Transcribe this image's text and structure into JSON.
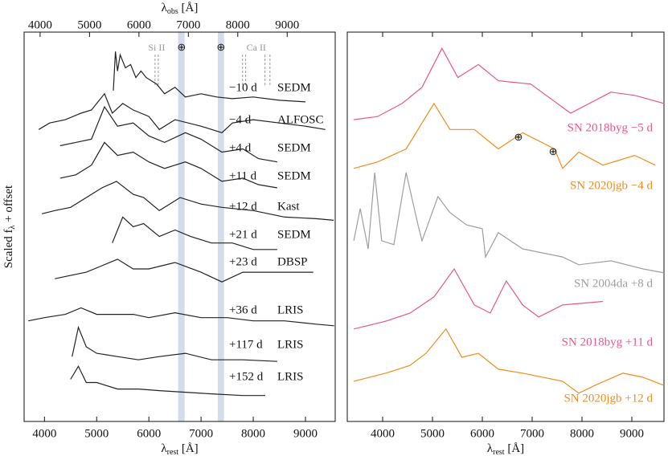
{
  "chart_data": [
    {
      "type": "line",
      "xlabel": {
        "symbol": "λ",
        "sub": "rest",
        "unit": " [Å]"
      },
      "x2label": {
        "symbol": "λ",
        "sub": "obs",
        "unit": " [Å]"
      },
      "ylabel": {
        "pre": "Scaled f",
        "sub": "λ",
        "post": " + offset"
      },
      "xlim": [
        3610,
        9570
      ],
      "xticks": [
        4000,
        5000,
        6000,
        7000,
        8000,
        9000
      ],
      "x2lim": [
        3676,
        9972
      ],
      "x2ticks": [
        4000,
        5000,
        6000,
        7000,
        8000,
        9000
      ],
      "ylim": [
        0,
        12
      ],
      "bands": [
        [
          6560,
          6685
        ],
        [
          7320,
          7440
        ]
      ],
      "band_color": "#c9d3e6",
      "telluric": [
        {
          "text": "⊕",
          "x": 6625
        },
        {
          "text": "⊕",
          "x": 7380
        }
      ],
      "lines": [
        {
          "text": "Si II",
          "x": [
            6118,
            6180
          ]
        },
        {
          "text": "Ca II",
          "x": [
            7795,
            7855,
            8225,
            8320
          ]
        }
      ],
      "series": [
        {
          "phase": "−10 d",
          "instrument": "SEDM",
          "color": "#222222",
          "x": [
            5320,
            5360,
            5400,
            5450,
            5550,
            5650,
            5750,
            5850,
            5950,
            6150,
            6300,
            6500,
            6700,
            7000,
            7300,
            7600,
            8000,
            8500,
            9000
          ],
          "values": [
            10.2,
            11.4,
            10.8,
            11.3,
            10.9,
            11.0,
            10.6,
            10.8,
            10.6,
            10.4,
            10.1,
            10.3,
            10.0,
            10.1,
            10.0,
            9.95,
            10.0,
            9.9,
            9.85
          ]
        },
        {
          "phase": "−4 d",
          "instrument": "ALFOSC",
          "color": "#222222",
          "x": [
            3890,
            4100,
            4400,
            4700,
            4900,
            5150,
            5300,
            5500,
            5700,
            6000,
            6200,
            6500,
            7000,
            7400,
            7600,
            8000,
            8500,
            9000,
            9380
          ],
          "values": [
            9.0,
            9.2,
            9.3,
            9.5,
            9.6,
            10.1,
            9.5,
            9.8,
            9.6,
            9.4,
            9.0,
            9.3,
            9.1,
            8.9,
            9.2,
            9.3,
            9.2,
            9.1,
            9.0
          ]
        },
        {
          "phase": "+4 d",
          "instrument": "SEDM",
          "color": "#222222",
          "x": [
            4300,
            4600,
            4900,
            5150,
            5400,
            5700,
            6000,
            6300,
            6700,
            7000,
            7400,
            7800,
            8100,
            8460
          ],
          "values": [
            8.5,
            8.6,
            8.7,
            9.7,
            9.1,
            9.2,
            8.8,
            8.6,
            8.9,
            8.7,
            8.3,
            8.4,
            8.1,
            8.0
          ]
        },
        {
          "phase": "+11 d",
          "instrument": "SEDM",
          "color": "#222222",
          "x": [
            4300,
            4600,
            4900,
            5150,
            5400,
            5700,
            6000,
            6300,
            6700,
            7000,
            7400,
            7800,
            8100,
            8460
          ],
          "values": [
            7.5,
            7.6,
            7.9,
            8.6,
            8.2,
            8.3,
            8.0,
            7.8,
            8.0,
            7.8,
            7.4,
            7.5,
            7.3,
            7.2
          ]
        },
        {
          "phase": "+12 d",
          "instrument": "Kast",
          "color": "#222222",
          "x": [
            3950,
            4200,
            4500,
            4800,
            5100,
            5380,
            5700,
            5900,
            6200,
            6600,
            7000,
            7400,
            8000,
            8600,
            9200,
            9540
          ],
          "values": [
            6.4,
            6.5,
            6.6,
            6.9,
            7.2,
            7.4,
            7.0,
            6.9,
            6.5,
            6.9,
            6.7,
            6.6,
            6.5,
            6.3,
            6.25,
            6.2
          ]
        },
        {
          "phase": "+21 d",
          "instrument": "SEDM",
          "color": "#222222",
          "x": [
            5300,
            5500,
            5700,
            5900,
            6200,
            6500,
            6800,
            7200,
            7600,
            8000,
            8460
          ],
          "values": [
            5.5,
            6.3,
            6.0,
            6.1,
            5.7,
            5.9,
            5.7,
            5.5,
            5.5,
            5.3,
            5.3
          ]
        },
        {
          "phase": "+23 d",
          "instrument": "DBSP",
          "color": "#222222",
          "x": [
            4200,
            4500,
            4800,
            5100,
            5400,
            5700,
            6000,
            6500,
            7000,
            7400,
            7800,
            8400,
            9150
          ],
          "values": [
            4.4,
            4.5,
            4.6,
            4.8,
            5.0,
            4.7,
            4.7,
            4.9,
            4.6,
            4.3,
            4.6,
            4.6,
            4.6
          ]
        },
        {
          "phase": "+36 d",
          "instrument": "LRIS",
          "color": "#222222",
          "x": [
            3690,
            4000,
            4400,
            4700,
            5000,
            5400,
            5700,
            6000,
            6500,
            7000,
            7500,
            8000,
            8600,
            9200,
            9550
          ],
          "values": [
            3.1,
            3.2,
            3.3,
            3.5,
            3.3,
            3.3,
            3.3,
            3.2,
            3.35,
            3.2,
            3.2,
            3.1,
            3.1,
            3.0,
            2.95
          ]
        },
        {
          "phase": "+117 d",
          "instrument": "LRIS",
          "color": "#222222",
          "x": [
            4530,
            4650,
            4800,
            5000,
            5400,
            5800,
            6200,
            6700,
            7200,
            7800,
            8460
          ],
          "values": [
            2.0,
            2.9,
            2.3,
            2.1,
            2.0,
            1.9,
            2.0,
            2.1,
            1.9,
            1.9,
            1.85
          ]
        },
        {
          "phase": "+152 d",
          "instrument": "LRIS",
          "color": "#222222",
          "x": [
            4500,
            4650,
            4800,
            5000,
            5400,
            5800,
            6200,
            6700,
            7200,
            7800,
            8230
          ],
          "values": [
            1.3,
            1.7,
            1.2,
            1.2,
            1.0,
            1.0,
            0.95,
            0.9,
            0.85,
            0.8,
            0.8
          ]
        }
      ]
    },
    {
      "type": "line",
      "xlabel": {
        "symbol": "λ",
        "sub": "rest",
        "unit": " [Å]"
      },
      "xlim": [
        3290,
        9645
      ],
      "xticks": [
        4000,
        5000,
        6000,
        7000,
        8000,
        9000
      ],
      "ylim": [
        0,
        12
      ],
      "telluric": [
        {
          "text": "⊕",
          "x": 6725
        },
        {
          "text": "⊕",
          "x": 7420
        }
      ],
      "series": [
        {
          "name": "SN 2018byg −5 d",
          "color": "#e8578f",
          "x": [
            3420,
            3900,
            4390,
            4790,
            5190,
            5510,
            5920,
            6320,
            6970,
            7770,
            8580,
            9060,
            9645
          ],
          "values": [
            9.3,
            9.4,
            9.8,
            10.3,
            11.5,
            10.6,
            11.0,
            10.5,
            10.4,
            9.5,
            10.15,
            10.05,
            9.8
          ]
        },
        {
          "name": "SN 2020jgb −4 d",
          "color": "#f28c1e",
          "x": [
            3420,
            3900,
            4470,
            5030,
            5350,
            5840,
            6320,
            6810,
            7450,
            7610,
            7935,
            8420,
            9060,
            9470
          ],
          "values": [
            7.8,
            8.0,
            8.4,
            9.8,
            9.0,
            9.0,
            8.4,
            8.9,
            8.4,
            7.8,
            8.3,
            7.9,
            8.2,
            7.9
          ]
        },
        {
          "name": "SN 2004da +8 d",
          "color": "#9e9e9e",
          "x": [
            3420,
            3550,
            3710,
            3840,
            3980,
            4225,
            4470,
            4710,
            4790,
            5110,
            5350,
            5680,
            6000,
            6065,
            6320,
            6810,
            7610,
            7935,
            8580,
            9225,
            9645
          ],
          "values": [
            5.57,
            6.56,
            5.32,
            7.67,
            5.57,
            5.45,
            7.67,
            6.06,
            5.57,
            6.93,
            6.44,
            6.06,
            5.94,
            5.07,
            5.82,
            5.32,
            5.07,
            4.83,
            4.95,
            4.7,
            4.58
          ]
        },
        {
          "name": "SN 2018byg +11 d",
          "color": "#e8578f",
          "x": [
            3420,
            4065,
            4550,
            5030,
            5435,
            5840,
            6160,
            6480,
            6810,
            7130,
            7610,
            8420
          ],
          "values": [
            2.85,
            3.09,
            3.34,
            3.84,
            4.7,
            3.59,
            3.34,
            4.33,
            3.59,
            3.22,
            3.59,
            3.7
          ]
        },
        {
          "name": "SN 2020jgb +12 d",
          "color": "#f28c1e",
          "x": [
            3420,
            4065,
            4550,
            4870,
            5270,
            5590,
            5920,
            6320,
            6810,
            7610,
            7935,
            8260,
            8820,
            9225,
            9645
          ],
          "values": [
            1.24,
            1.49,
            1.73,
            2.1,
            2.85,
            1.98,
            2.1,
            1.61,
            1.49,
            1.24,
            0.87,
            1.11,
            1.49,
            1.36,
            1.11
          ]
        }
      ]
    }
  ]
}
